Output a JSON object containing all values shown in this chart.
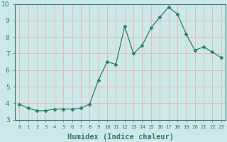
{
  "x": [
    0,
    1,
    2,
    3,
    4,
    5,
    6,
    7,
    8,
    9,
    10,
    11,
    12,
    13,
    14,
    15,
    16,
    17,
    18,
    19,
    20,
    21,
    22,
    23
  ],
  "y": [
    3.95,
    3.7,
    3.55,
    3.55,
    3.65,
    3.65,
    3.65,
    3.7,
    3.95,
    5.4,
    6.5,
    6.35,
    8.65,
    7.0,
    7.5,
    8.55,
    9.2,
    9.8,
    9.4,
    8.2,
    7.2,
    7.4,
    7.1,
    6.75
  ],
  "line_color": "#2e7d6e",
  "marker": "D",
  "marker_size": 2.5,
  "bg_color": "#cce8e8",
  "grid_color": "#f0b0b0",
  "xlabel": "Humidex (Indice chaleur)",
  "ylim": [
    3,
    10
  ],
  "xlim": [
    -0.5,
    23.5
  ],
  "yticks": [
    3,
    4,
    5,
    6,
    7,
    8,
    9,
    10
  ],
  "xticks": [
    0,
    1,
    2,
    3,
    4,
    5,
    6,
    7,
    8,
    9,
    10,
    11,
    12,
    13,
    14,
    15,
    16,
    17,
    18,
    19,
    20,
    21,
    22,
    23
  ],
  "tick_color": "#2e7d6e",
  "label_fontsize": 6.5,
  "xlabel_fontsize": 7.5
}
